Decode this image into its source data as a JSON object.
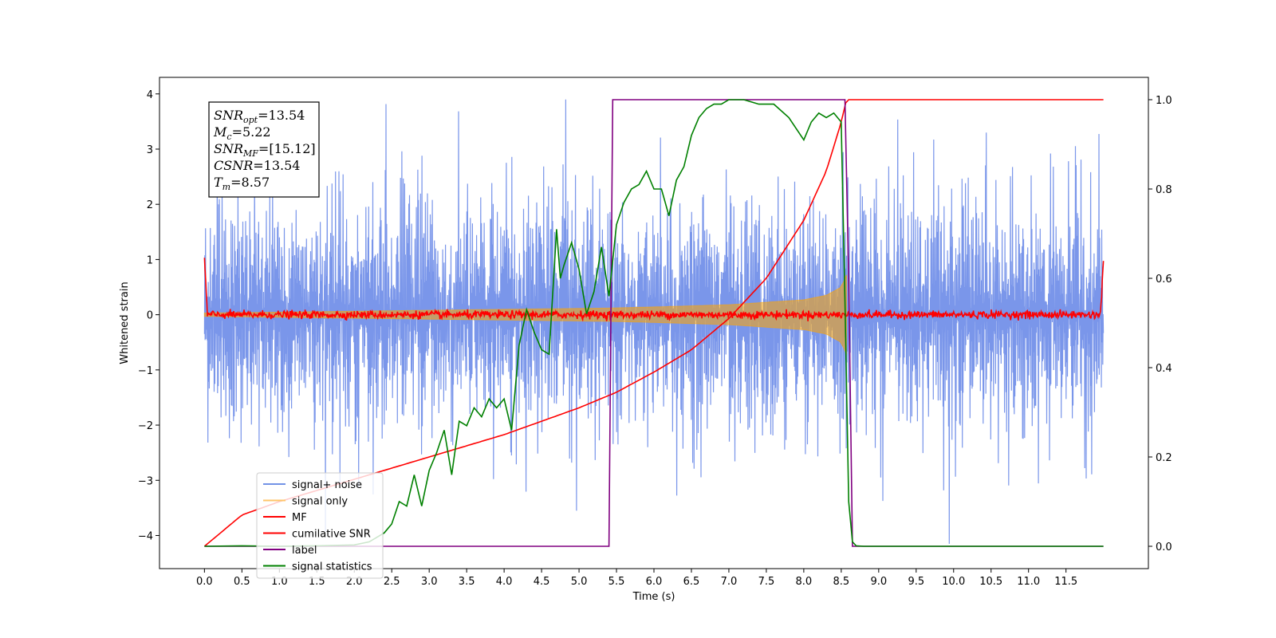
{
  "chart_data": {
    "type": "line",
    "xlabel": "Time (s)",
    "ylabel": "Whitened strain",
    "xlim": [
      -0.6,
      12.6
    ],
    "ylim": [
      -4.6,
      4.3
    ],
    "y2lim": [
      -0.05,
      1.05
    ],
    "x_ticks": [
      "0.0",
      "0.5",
      "1.0",
      "1.5",
      "2.0",
      "2.5",
      "3.0",
      "3.5",
      "4.0",
      "4.5",
      "5.0",
      "5.5",
      "6.0",
      "6.5",
      "7.0",
      "7.5",
      "8.0",
      "8.5",
      "9.0",
      "9.5",
      "10.0",
      "10.5",
      "11.0",
      "11.5"
    ],
    "y_ticks": [
      "4",
      "3",
      "2",
      "1",
      "0",
      "−1",
      "−2",
      "−3",
      "−4"
    ],
    "y2_ticks": [
      "1.0",
      "0.8",
      "0.6",
      "0.4",
      "0.2",
      "0.0"
    ],
    "colors": {
      "signal_noise": "#4169e1",
      "signal_only": "#ffa500",
      "mf": "#ff0000",
      "cumulative_snr": "#ff0000",
      "label": "#800080",
      "signal_statistics": "#008000"
    },
    "legend_position": "lower-left",
    "legend": [
      {
        "name": "signal+ noise",
        "color": "#7393e6"
      },
      {
        "name": "signal only",
        "color": "#ffc56a"
      },
      {
        "name": "MF",
        "color": "#ff0000"
      },
      {
        "name": "cumilative SNR",
        "color": "#ff0000"
      },
      {
        "name": "label",
        "color": "#800080"
      },
      {
        "name": "signal statistics",
        "color": "#008000"
      }
    ],
    "annotation": [
      {
        "sym": "SNR",
        "sub": "opt",
        "value": "=13.54"
      },
      {
        "sym": "M",
        "sub": "c",
        "value": "=5.22"
      },
      {
        "sym": "SNR",
        "sub": "MF",
        "value": "=[15.12]"
      },
      {
        "sym": "CSNR",
        "sub": "",
        "value": "=13.54"
      },
      {
        "sym": "T",
        "sub": "m",
        "value": "=8.57"
      }
    ],
    "series": [
      {
        "key": "signal_noise",
        "axis": "left",
        "time_range": [
          0.0,
          12.0
        ],
        "noise_std": 0.9
      },
      {
        "key": "signal_only",
        "axis": "left",
        "envelope": {
          "x": [
            0.0,
            5.4,
            6.0,
            7.0,
            8.0,
            8.3,
            8.5,
            8.57
          ],
          "amp": [
            0.03,
            0.12,
            0.14,
            0.18,
            0.27,
            0.35,
            0.5,
            0.72
          ]
        }
      },
      {
        "key": "mf",
        "axis": "left",
        "time_range": [
          0.0,
          12.0
        ],
        "noise_std": 0.035,
        "edge_value": 1.0
      },
      {
        "key": "cumulative_snr",
        "axis": "right",
        "x": [
          0.0,
          0.5,
          1.0,
          2.0,
          3.0,
          4.0,
          5.0,
          5.5,
          6.0,
          6.5,
          7.0,
          7.5,
          8.0,
          8.3,
          8.5,
          8.57,
          9.0,
          12.0
        ],
        "y": [
          0.0,
          0.07,
          0.1,
          0.15,
          0.2,
          0.25,
          0.31,
          0.345,
          0.39,
          0.44,
          0.51,
          0.6,
          0.73,
          0.84,
          0.95,
          1.0,
          1.0,
          1.0
        ]
      },
      {
        "key": "label",
        "axis": "right",
        "x": [
          0.0,
          5.4,
          5.45,
          8.55,
          8.6,
          8.65,
          12.0
        ],
        "y": [
          0.0,
          0.0,
          1.0,
          1.0,
          0.6,
          0.0,
          0.0
        ]
      },
      {
        "key": "signal_statistics",
        "axis": "right",
        "x": [
          0.0,
          0.5,
          1.0,
          1.5,
          2.0,
          2.2,
          2.4,
          2.5,
          2.6,
          2.7,
          2.8,
          2.9,
          3.0,
          3.1,
          3.2,
          3.3,
          3.4,
          3.5,
          3.6,
          3.7,
          3.8,
          3.9,
          4.0,
          4.1,
          4.2,
          4.3,
          4.4,
          4.5,
          4.6,
          4.7,
          4.75,
          4.8,
          4.9,
          5.0,
          5.1,
          5.2,
          5.3,
          5.4,
          5.5,
          5.6,
          5.7,
          5.8,
          5.9,
          6.0,
          6.1,
          6.2,
          6.3,
          6.4,
          6.5,
          6.6,
          6.7,
          6.8,
          6.9,
          7.0,
          7.2,
          7.4,
          7.6,
          7.8,
          8.0,
          8.1,
          8.2,
          8.3,
          8.4,
          8.5,
          8.55,
          8.6,
          8.65,
          8.7,
          8.8,
          9.0,
          10.0,
          11.0,
          12.0
        ],
        "y": [
          0.0,
          0.001,
          0.0,
          0.001,
          0.003,
          0.01,
          0.03,
          0.05,
          0.1,
          0.09,
          0.16,
          0.09,
          0.17,
          0.21,
          0.26,
          0.16,
          0.28,
          0.27,
          0.31,
          0.29,
          0.33,
          0.31,
          0.33,
          0.26,
          0.45,
          0.53,
          0.48,
          0.44,
          0.43,
          0.71,
          0.6,
          0.63,
          0.68,
          0.62,
          0.52,
          0.57,
          0.67,
          0.56,
          0.72,
          0.77,
          0.8,
          0.81,
          0.84,
          0.8,
          0.8,
          0.74,
          0.82,
          0.85,
          0.92,
          0.96,
          0.98,
          0.99,
          0.99,
          1.0,
          1.0,
          0.99,
          0.99,
          0.96,
          0.91,
          0.95,
          0.97,
          0.96,
          0.97,
          0.95,
          0.55,
          0.1,
          0.01,
          0.001,
          0.0,
          0.0,
          0.0,
          0.0,
          0.0
        ]
      }
    ]
  }
}
